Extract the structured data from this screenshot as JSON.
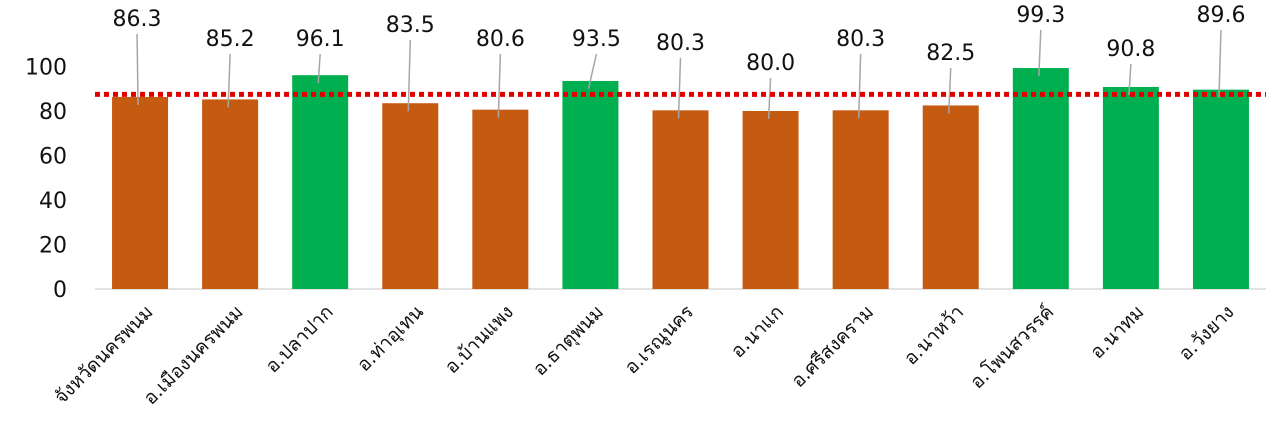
{
  "chart_data": {
    "type": "bar",
    "categories": [
      "จังหวัดนครพนม",
      "อ.เมืองนครพนม",
      "อ.ปลาปาก",
      "อ.ท่าอุเทน",
      "อ.บ้านแพง",
      "อ.ธาตุพนม",
      "อ.เรณูนคร",
      "อ.นาแก",
      "อ.ศรีสงคราม",
      "อ.นาหว้า",
      "อ.โพนสวรรค์",
      "อ.นาทม",
      "อ.วังยาง"
    ],
    "values": [
      86.3,
      85.2,
      96.1,
      83.5,
      80.6,
      93.5,
      80.3,
      80.0,
      80.3,
      82.5,
      99.3,
      90.8,
      89.6
    ],
    "data_labels": [
      "86.3",
      "85.2",
      "96.1",
      "83.5",
      "80.6",
      "93.5",
      "80.3",
      "80.0",
      "80.3",
      "82.5",
      "99.3",
      "90.8",
      "89.6"
    ],
    "bar_colors": [
      "#C55A11",
      "#C55A11",
      "#00B050",
      "#C55A11",
      "#C55A11",
      "#00B050",
      "#C55A11",
      "#C55A11",
      "#C55A11",
      "#C55A11",
      "#00B050",
      "#00B050",
      "#00B050"
    ],
    "colors": {
      "below_target": "#C55A11",
      "above_target": "#00B050",
      "reference_line": "#E00000"
    },
    "reference_line": {
      "value": 87.5,
      "style": "dotted"
    },
    "y_ticks": [
      "0",
      "20",
      "40",
      "60",
      "80",
      "100"
    ],
    "ylim": [
      0,
      110
    ],
    "grid": false,
    "legend": "none",
    "title": "",
    "xlabel": "",
    "ylabel": ""
  }
}
